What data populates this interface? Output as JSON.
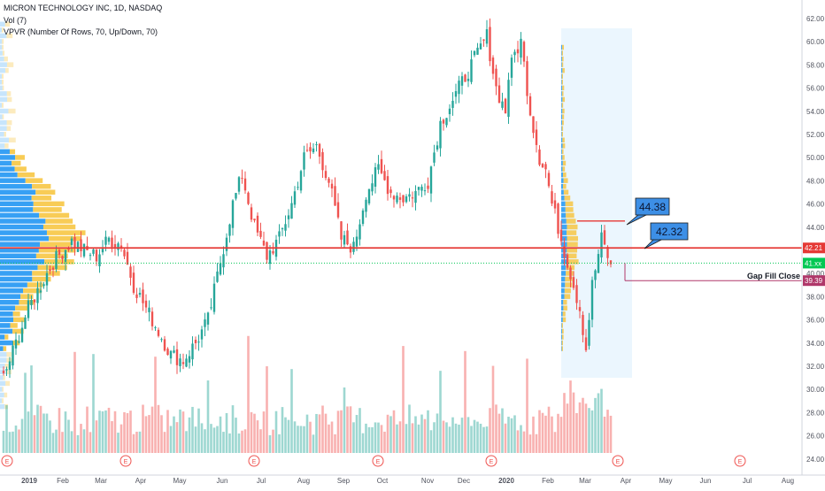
{
  "header": {
    "symbol": "MICRON TECHNOLOGY INC, 1D, NASDAQ",
    "volume_indicator": "Vol (7)",
    "vpvr_indicator": "VPVR (Number Of Rows, 70, Up/Down, 70)"
  },
  "annotations": {
    "box_high": "44.38",
    "box_low": "42.32",
    "gap_fill": "Gap Fill Close"
  },
  "price_labels": {
    "resistance": "42.21",
    "current": "41.xx",
    "gap": "39.39"
  },
  "colors": {
    "up": "#26a69a",
    "down": "#ef5350",
    "resistance_line": "#e53935",
    "current_line": "#00c853",
    "gap_line": "#b0386a",
    "callout": "#3d8fe6",
    "vp_up": "#2196f3",
    "vp_down": "#f7c644",
    "highlight_box": "#e3f2fd"
  },
  "chart_data": {
    "type": "candlestick",
    "title": "MICRON TECHNOLOGY INC, 1D, NASDAQ",
    "ylim": [
      23,
      63
    ],
    "yticks": [
      24,
      26,
      28,
      30,
      32,
      34,
      36,
      38,
      40,
      42,
      44,
      46,
      48,
      50,
      52,
      54,
      56,
      58,
      60,
      62
    ],
    "x_labels": [
      "2019",
      "Feb",
      "Mar",
      "Apr",
      "May",
      "Jun",
      "Jul",
      "Aug",
      "Sep",
      "Oct",
      "Nov",
      "Dec",
      "2020",
      "Feb",
      "Mar",
      "Apr",
      "May",
      "Jun",
      "Jul",
      "Aug"
    ],
    "earnings_markers": [
      "E",
      "E",
      "E",
      "E",
      "E",
      "E",
      "E"
    ],
    "price_path": [
      [
        0,
        31
      ],
      [
        8,
        37
      ],
      [
        16,
        41
      ],
      [
        22,
        42.8
      ],
      [
        26,
        42
      ],
      [
        30,
        41.5
      ],
      [
        34,
        43
      ],
      [
        38,
        42.5
      ],
      [
        42,
        39
      ],
      [
        46,
        37
      ],
      [
        50,
        35
      ],
      [
        54,
        33
      ],
      [
        58,
        32.5
      ],
      [
        62,
        34
      ],
      [
        66,
        36
      ],
      [
        70,
        41
      ],
      [
        74,
        46
      ],
      [
        77,
        48.5
      ],
      [
        81,
        44
      ],
      [
        85,
        41.5
      ],
      [
        89,
        43
      ],
      [
        93,
        46
      ],
      [
        97,
        50
      ],
      [
        101,
        51
      ],
      [
        105,
        48
      ],
      [
        109,
        43
      ],
      [
        113,
        42.2
      ],
      [
        117,
        47
      ],
      [
        121,
        49
      ],
      [
        125,
        47
      ],
      [
        129,
        46.5
      ],
      [
        133,
        47
      ],
      [
        137,
        48
      ],
      [
        141,
        53
      ],
      [
        145,
        55
      ],
      [
        149,
        57
      ],
      [
        153,
        59
      ],
      [
        156,
        60.5
      ],
      [
        159,
        56
      ],
      [
        162,
        54
      ],
      [
        163,
        57
      ],
      [
        165,
        59
      ],
      [
        167,
        60
      ],
      [
        170,
        54
      ],
      [
        173,
        50
      ],
      [
        175,
        49
      ],
      [
        177,
        46
      ],
      [
        180,
        43
      ],
      [
        183,
        40
      ],
      [
        186,
        37
      ],
      [
        188,
        33.5
      ],
      [
        190,
        39
      ],
      [
        193,
        43
      ],
      [
        196,
        40.8
      ]
    ],
    "levels": {
      "resistance": 42.21,
      "current": 40.9,
      "gap_fill": 39.39,
      "callout_high": 44.38,
      "callout_low": 42.32
    }
  }
}
